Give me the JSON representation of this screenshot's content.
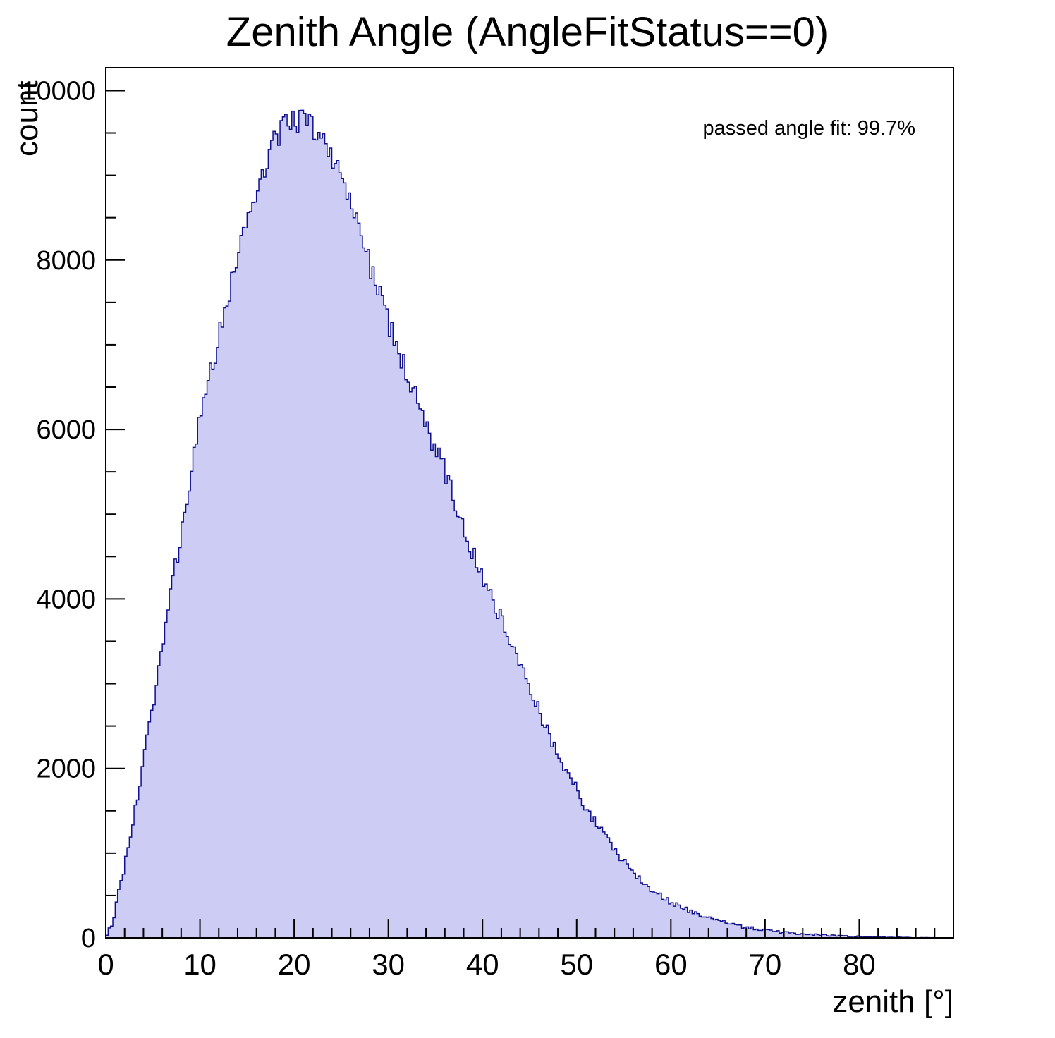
{
  "chart_data": {
    "type": "bar",
    "style": "histogram-step-filled",
    "title": "Zenith Angle (AngleFitStatus==0)",
    "xlabel": "zenith [°]",
    "ylabel": "count",
    "annotations": [
      "passed angle fit: 99.7%"
    ],
    "xlim": [
      0,
      90
    ],
    "ylim": [
      0,
      10270
    ],
    "xticks": [
      0,
      10,
      20,
      30,
      40,
      50,
      60,
      70,
      80
    ],
    "yticks": [
      0,
      2000,
      4000,
      6000,
      8000,
      10000
    ],
    "x_minor_step": 2,
    "y_minor_step": 500,
    "grid": false,
    "legend": "none",
    "bin_start": 0,
    "bin_width": 1,
    "counts": [
      130,
      600,
      1150,
      1750,
      2400,
      3100,
      3800,
      4450,
      5100,
      5800,
      6350,
      6850,
      7350,
      7800,
      8250,
      8650,
      9000,
      9300,
      9500,
      9600,
      9650,
      9600,
      9500,
      9350,
      9100,
      8800,
      8500,
      8150,
      7800,
      7450,
      7100,
      6800,
      6500,
      6150,
      5900,
      5650,
      5350,
      5000,
      4700,
      4400,
      4150,
      3900,
      3650,
      3350,
      3100,
      2850,
      2550,
      2300,
      2050,
      1850,
      1650,
      1450,
      1280,
      1120,
      980,
      850,
      730,
      620,
      530,
      460,
      400,
      345,
      295,
      255,
      220,
      190,
      160,
      135,
      115,
      98,
      84,
      72,
      61,
      52,
      44,
      37,
      31,
      26,
      22,
      18,
      15,
      12,
      10,
      8,
      7,
      5,
      4,
      3
    ],
    "fill_color": "#ccccf5",
    "line_color": "#10108f",
    "axis_color": "#000000"
  }
}
